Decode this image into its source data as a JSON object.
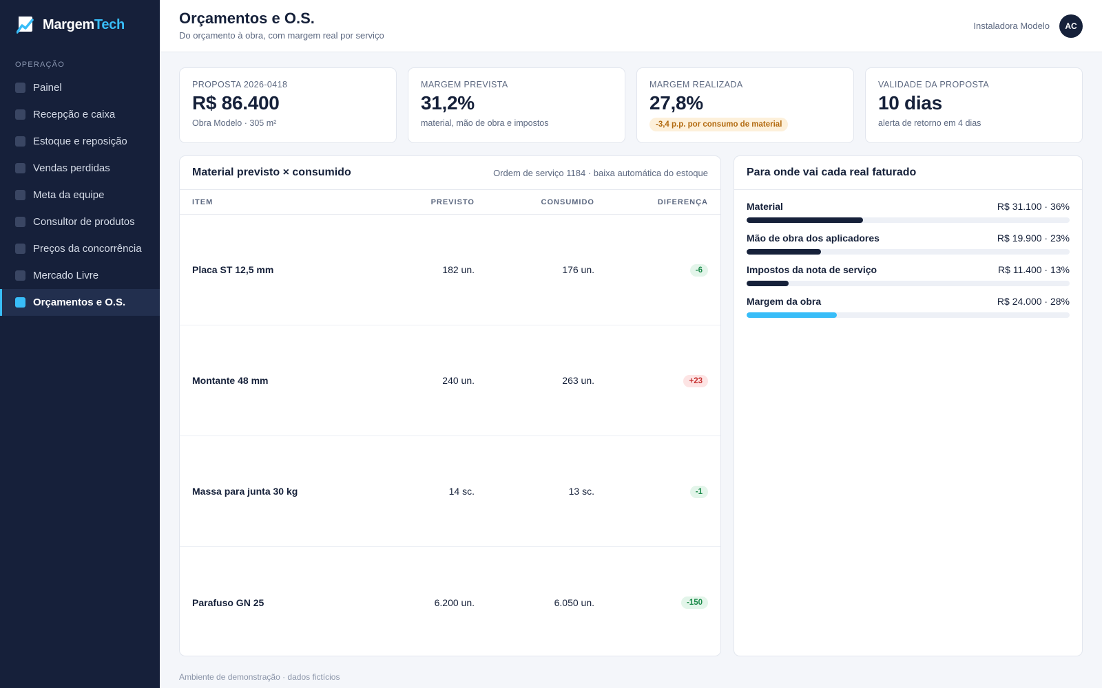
{
  "brand": {
    "name_a": "Margem",
    "name_b": "Tech"
  },
  "sidebar": {
    "section": "OPERAÇÃO",
    "items": [
      {
        "label": "Painel",
        "active": false
      },
      {
        "label": "Recepção e caixa",
        "active": false
      },
      {
        "label": "Estoque e reposição",
        "active": false
      },
      {
        "label": "Vendas perdidas",
        "active": false
      },
      {
        "label": "Meta da equipe",
        "active": false
      },
      {
        "label": "Consultor de produtos",
        "active": false
      },
      {
        "label": "Preços da concorrência",
        "active": false
      },
      {
        "label": "Mercado Livre",
        "active": false
      },
      {
        "label": "Orçamentos e O.S.",
        "active": true
      }
    ]
  },
  "header": {
    "title": "Orçamentos e O.S.",
    "subtitle": "Do orçamento à obra, com margem real por serviço",
    "org": "Instaladora Modelo",
    "avatar": "AC"
  },
  "kpis": [
    {
      "label": "PROPOSTA 2026-0418",
      "value": "R$ 86.400",
      "sub": "Obra Modelo · 305 m²"
    },
    {
      "label": "MARGEM PREVISTA",
      "value": "31,2%",
      "sub": "material, mão de obra e impostos"
    },
    {
      "label": "MARGEM REALIZADA",
      "value": "27,8%",
      "badge": "-3,4 p.p. por consumo de material"
    },
    {
      "label": "VALIDADE DA PROPOSTA",
      "value": "10 dias",
      "sub": "alerta de retorno em 4 dias"
    }
  ],
  "material": {
    "title": "Material previsto × consumido",
    "meta": "Ordem de serviço 1184 · baixa automática do estoque",
    "columns": {
      "item": "ITEM",
      "prev": "PREVISTO",
      "cons": "CONSUMIDO",
      "diff": "DIFERENÇA"
    },
    "rows": [
      {
        "item": "Placa ST 12,5 mm",
        "prev": "182 un.",
        "cons": "176 un.",
        "diff": "-6",
        "status": "good"
      },
      {
        "item": "Montante 48 mm",
        "prev": "240 un.",
        "cons": "263 un.",
        "diff": "+23",
        "status": "bad"
      },
      {
        "item": "Massa para junta 30 kg",
        "prev": "14 sc.",
        "cons": "13 sc.",
        "diff": "-1",
        "status": "good"
      },
      {
        "item": "Parafuso GN 25",
        "prev": "6.200 un.",
        "cons": "6.050 un.",
        "diff": "-150",
        "status": "good"
      }
    ]
  },
  "breakdown": {
    "title": "Para onde vai cada real faturado",
    "items": [
      {
        "label": "Material",
        "value": "R$ 31.100 · 36%",
        "pct": 36,
        "accent": false
      },
      {
        "label": "Mão de obra dos aplicadores",
        "value": "R$ 19.900 · 23%",
        "pct": 23,
        "accent": false
      },
      {
        "label": "Impostos da nota de serviço",
        "value": "R$ 11.400 · 13%",
        "pct": 13,
        "accent": false
      },
      {
        "label": "Margem da obra",
        "value": "R$ 24.000 · 28%",
        "pct": 28,
        "accent": true
      }
    ]
  },
  "colors": {
    "sidebar_bg": "#16203a",
    "accent": "#38bdf8",
    "good": "#1c8a4a",
    "bad": "#c53030",
    "warn": "#b26a10"
  },
  "footer": "Ambiente de demonstração · dados fictícios"
}
